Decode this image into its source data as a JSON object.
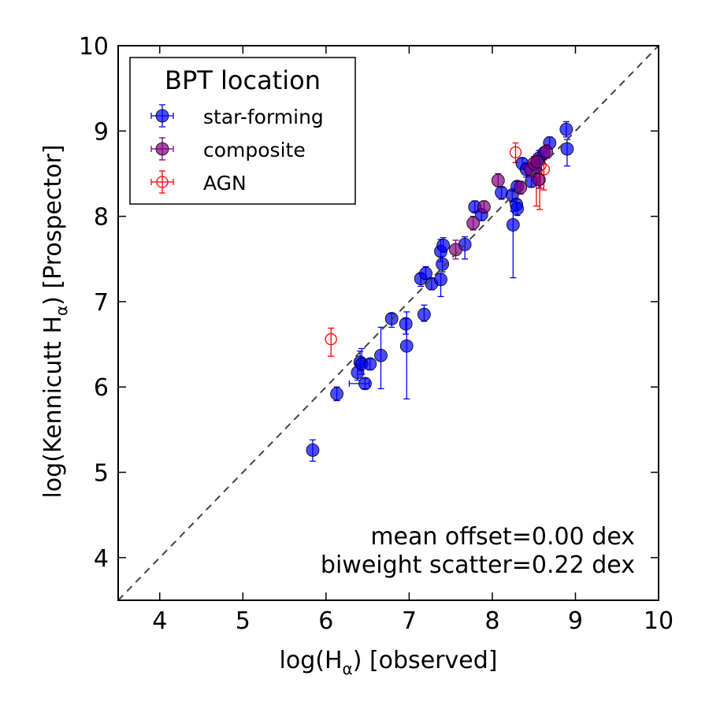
{
  "chart_data": {
    "type": "scatter",
    "xlabel": "log(H",
    "xlabel_sub": "α",
    "xlabel_suffix": ") [observed]",
    "ylabel": "log(Kennicutt H",
    "ylabel_sub": "α",
    "ylabel_suffix": ") [Prospector]",
    "xlim": [
      3.5,
      10
    ],
    "ylim": [
      3.5,
      10
    ],
    "xticks": [
      "4",
      "5",
      "6",
      "7",
      "8",
      "9",
      "10"
    ],
    "yticks": [
      "4",
      "5",
      "6",
      "7",
      "8",
      "9",
      "10"
    ],
    "one_to_one_line": true,
    "legend": {
      "title": "BPT location",
      "position": "top-left",
      "entries": [
        "star-forming",
        "composite",
        "AGN"
      ]
    },
    "annotations": [
      "mean offset=0.00 dex",
      "biweight scatter=0.22 dex"
    ],
    "colors": {
      "star-forming": "#0000ff",
      "composite": "#800080",
      "AGN": "#ff0000",
      "one_to_one": "#444444"
    },
    "series": [
      {
        "name": "star-forming",
        "points": [
          {
            "x": 5.84,
            "y": 5.26,
            "ylo": 5.13,
            "yhi": 5.38
          },
          {
            "x": 6.13,
            "y": 5.92,
            "ylo": 5.84,
            "yhi": 6.0
          },
          {
            "x": 6.38,
            "y": 6.17,
            "ylo": 6.08,
            "yhi": 6.27
          },
          {
            "x": 6.41,
            "y": 6.29,
            "ylo": 6.19,
            "yhi": 6.42
          },
          {
            "x": 6.43,
            "y": 6.27,
            "ylo": 6.15,
            "yhi": 6.45
          },
          {
            "x": 6.47,
            "y": 6.04,
            "ylo": 5.98,
            "yhi": 6.1,
            "xlo": 6.28,
            "xhi": 6.52
          },
          {
            "x": 6.53,
            "y": 6.27,
            "ylo": 6.2,
            "yhi": 6.33
          },
          {
            "x": 6.66,
            "y": 6.37,
            "ylo": 5.98,
            "yhi": 6.7
          },
          {
            "x": 6.79,
            "y": 6.8,
            "ylo": 6.7,
            "yhi": 6.86
          },
          {
            "x": 6.96,
            "y": 6.74,
            "ylo": 6.62,
            "yhi": 6.8
          },
          {
            "x": 6.97,
            "y": 6.48,
            "ylo": 5.86,
            "yhi": 6.88
          },
          {
            "x": 7.14,
            "y": 7.27,
            "ylo": 7.18,
            "yhi": 7.33
          },
          {
            "x": 7.18,
            "y": 6.85,
            "ylo": 6.77,
            "yhi": 6.96
          },
          {
            "x": 7.2,
            "y": 7.33,
            "ylo": 7.26,
            "yhi": 7.41
          },
          {
            "x": 7.27,
            "y": 7.21,
            "ylo": 7.14,
            "yhi": 7.27
          },
          {
            "x": 7.38,
            "y": 7.26,
            "ylo": 7.06,
            "yhi": 7.33
          },
          {
            "x": 7.38,
            "y": 7.59,
            "ylo": 7.47,
            "yhi": 7.73
          },
          {
            "x": 7.4,
            "y": 7.44,
            "ylo": 7.35,
            "yhi": 7.53
          },
          {
            "x": 7.41,
            "y": 7.66,
            "ylo": 7.58,
            "yhi": 7.75
          },
          {
            "x": 7.67,
            "y": 7.67,
            "ylo": 7.5,
            "yhi": 7.76
          },
          {
            "x": 7.79,
            "y": 8.11,
            "ylo": 8.05,
            "yhi": 8.18
          },
          {
            "x": 7.87,
            "y": 8.02,
            "ylo": 7.95,
            "yhi": 8.09
          },
          {
            "x": 8.11,
            "y": 8.28,
            "ylo": 8.2,
            "yhi": 8.34
          },
          {
            "x": 8.24,
            "y": 8.25,
            "ylo": 8.17,
            "yhi": 8.3
          },
          {
            "x": 8.25,
            "y": 7.9,
            "ylo": 7.28,
            "yhi": 8.06
          },
          {
            "x": 8.29,
            "y": 8.14,
            "ylo": 8.07,
            "yhi": 8.2
          },
          {
            "x": 8.3,
            "y": 8.09,
            "ylo": 8.01,
            "yhi": 8.16
          },
          {
            "x": 8.3,
            "y": 8.35,
            "ylo": 8.29,
            "yhi": 8.41
          },
          {
            "x": 8.36,
            "y": 8.62,
            "ylo": 8.55,
            "yhi": 8.68
          },
          {
            "x": 8.41,
            "y": 8.55,
            "ylo": 8.46,
            "yhi": 8.63
          },
          {
            "x": 8.47,
            "y": 8.41,
            "ylo": 8.34,
            "yhi": 8.49
          },
          {
            "x": 8.52,
            "y": 8.58,
            "ylo": 8.5,
            "yhi": 8.66
          },
          {
            "x": 8.56,
            "y": 8.68,
            "ylo": 8.6,
            "yhi": 8.77
          },
          {
            "x": 8.62,
            "y": 8.74,
            "ylo": 8.67,
            "yhi": 8.81
          },
          {
            "x": 8.69,
            "y": 8.86,
            "ylo": 8.79,
            "yhi": 8.93
          },
          {
            "x": 8.89,
            "y": 9.02,
            "ylo": 8.93,
            "yhi": 9.11
          },
          {
            "x": 8.9,
            "y": 8.79,
            "ylo": 8.59,
            "yhi": 8.9
          }
        ]
      },
      {
        "name": "composite",
        "points": [
          {
            "x": 7.56,
            "y": 7.61,
            "ylo": 7.5,
            "yhi": 7.72
          },
          {
            "x": 7.77,
            "y": 7.92,
            "ylo": 7.84,
            "yhi": 8.0
          },
          {
            "x": 7.9,
            "y": 8.11,
            "ylo": 8.04,
            "yhi": 8.18
          },
          {
            "x": 8.07,
            "y": 8.42,
            "ylo": 8.35,
            "yhi": 8.5
          },
          {
            "x": 8.34,
            "y": 8.34,
            "ylo": 8.26,
            "yhi": 8.41
          },
          {
            "x": 8.46,
            "y": 8.55,
            "ylo": 8.46,
            "yhi": 8.63
          },
          {
            "x": 8.5,
            "y": 8.62,
            "ylo": 8.54,
            "yhi": 8.7
          },
          {
            "x": 8.54,
            "y": 8.64,
            "ylo": 8.55,
            "yhi": 8.73
          },
          {
            "x": 8.56,
            "y": 8.43,
            "ylo": 8.33,
            "yhi": 8.54
          },
          {
            "x": 8.65,
            "y": 8.76,
            "ylo": 8.68,
            "yhi": 8.84
          }
        ]
      },
      {
        "name": "AGN",
        "points": [
          {
            "x": 6.06,
            "y": 6.56,
            "ylo": 6.36,
            "yhi": 6.69
          },
          {
            "x": 8.28,
            "y": 8.75,
            "ylo": 8.63,
            "yhi": 8.86
          },
          {
            "x": 8.53,
            "y": 8.52,
            "ylo": 8.12,
            "yhi": 8.64
          },
          {
            "x": 8.57,
            "y": 8.43,
            "ylo": 8.08,
            "yhi": 8.55
          },
          {
            "x": 8.58,
            "y": 8.6,
            "ylo": 8.33,
            "yhi": 8.73
          },
          {
            "x": 8.62,
            "y": 8.55,
            "ylo": 8.31,
            "yhi": 8.66
          }
        ]
      }
    ]
  }
}
